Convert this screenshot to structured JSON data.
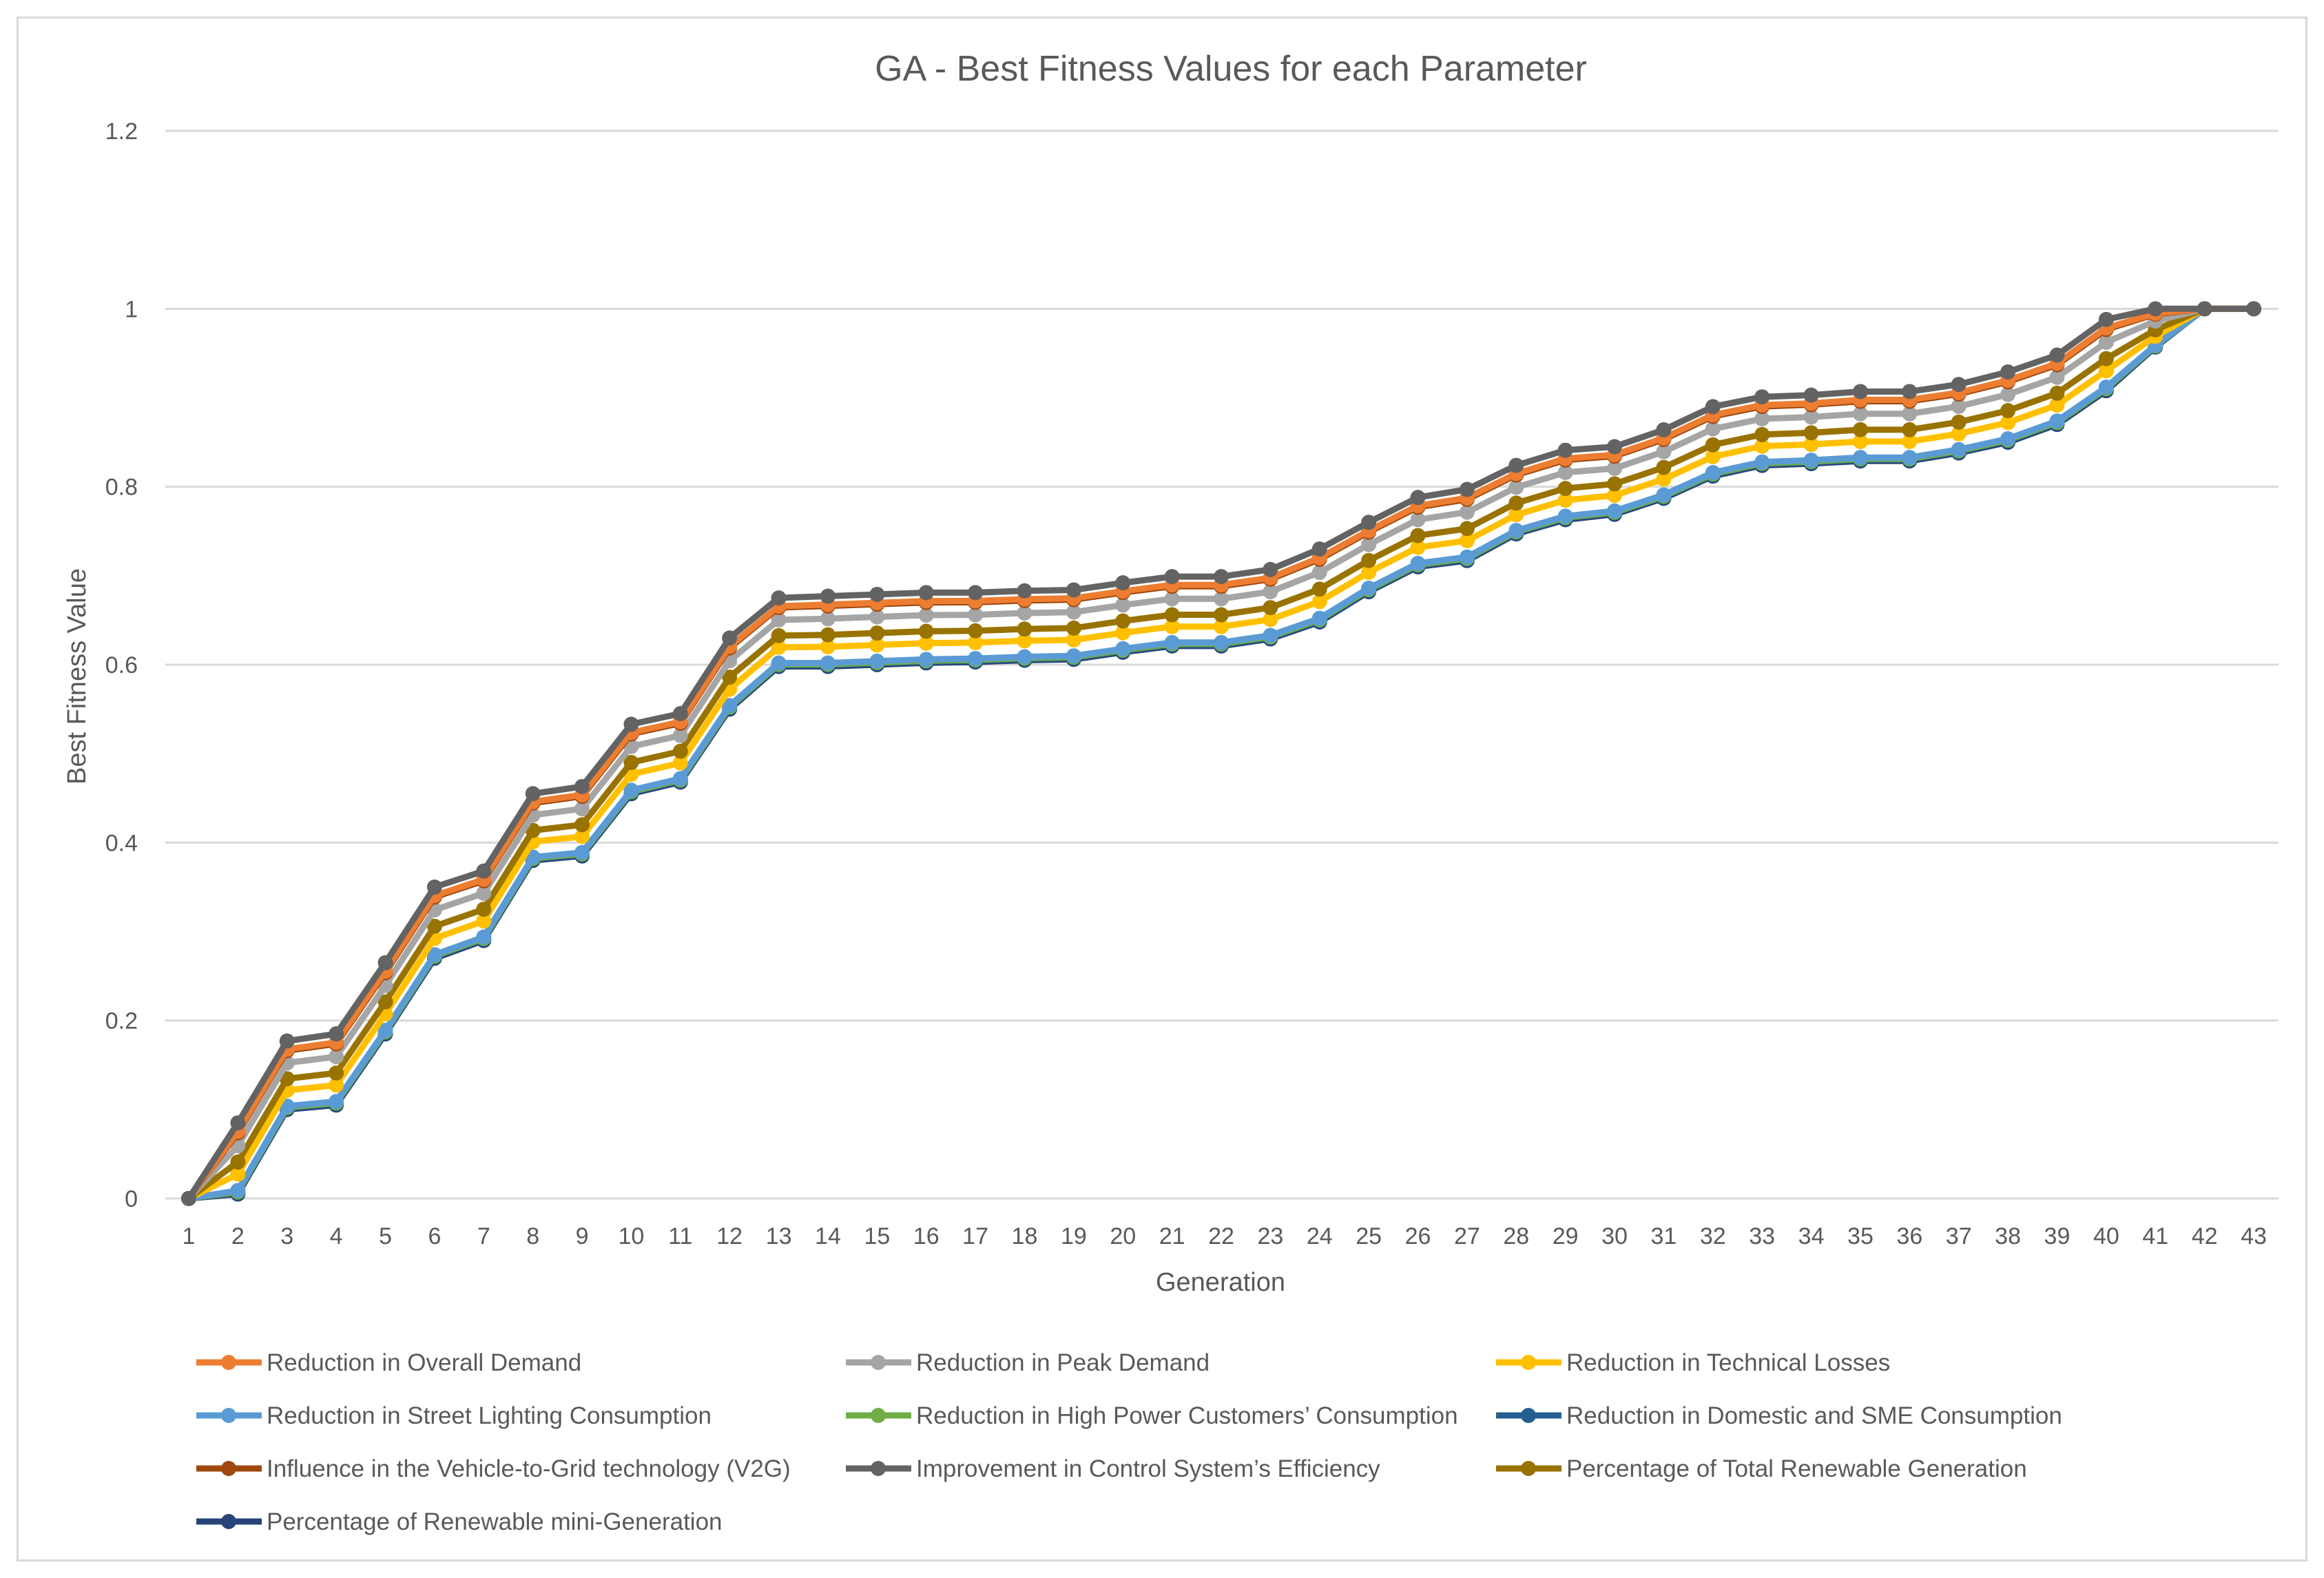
{
  "chart_data": {
    "type": "line",
    "title": "GA - Best Fitness Values for each Parameter",
    "xlabel": "Generation",
    "ylabel": "Best Fitness Value",
    "ylim": [
      0,
      1.2
    ],
    "yticks": [
      0,
      0.2,
      0.4,
      0.6,
      0.8,
      1,
      1.2
    ],
    "ytick_labels": [
      "0",
      "0.2",
      "0.4",
      "0.6",
      "0.8",
      "1",
      "1.2"
    ],
    "grid": "horizontal",
    "legend_position": "bottom",
    "x": [
      1,
      2,
      3,
      4,
      5,
      6,
      7,
      8,
      9,
      10,
      11,
      12,
      13,
      14,
      15,
      16,
      17,
      18,
      19,
      20,
      21,
      22,
      23,
      24,
      25,
      26,
      27,
      28,
      29,
      30,
      31,
      32,
      33,
      34,
      35,
      36,
      37,
      38,
      39,
      40,
      41,
      42,
      43
    ],
    "x_labels": [
      "1",
      "2",
      "3",
      "4",
      "5",
      "6",
      "7",
      "8",
      "9",
      "10",
      "11",
      "12",
      "13",
      "14",
      "15",
      "16",
      "17",
      "18",
      "19",
      "20",
      "21",
      "22",
      "23",
      "24",
      "25",
      "26",
      "27",
      "28",
      "29",
      "30",
      "31",
      "32",
      "33",
      "34",
      "35",
      "36",
      "37",
      "38",
      "39",
      "40",
      "41",
      "42",
      "43"
    ],
    "base_values": [
      0,
      0.005,
      0.1,
      0.105,
      0.185,
      0.27,
      0.29,
      0.38,
      0.385,
      0.455,
      0.468,
      0.55,
      0.598,
      0.598,
      0.6,
      0.602,
      0.603,
      0.605,
      0.606,
      0.614,
      0.621,
      0.621,
      0.629,
      0.648,
      0.682,
      0.71,
      0.717,
      0.747,
      0.763,
      0.769,
      0.787,
      0.812,
      0.824,
      0.826,
      0.829,
      0.829,
      0.838,
      0.85,
      0.87,
      0.908,
      0.957,
      1,
      1
    ],
    "top_values": [
      0,
      0.085,
      0.177,
      0.185,
      0.265,
      0.35,
      0.368,
      0.455,
      0.463,
      0.533,
      0.545,
      0.63,
      0.675,
      0.677,
      0.679,
      0.681,
      0.681,
      0.683,
      0.684,
      0.692,
      0.699,
      0.699,
      0.707,
      0.73,
      0.76,
      0.788,
      0.797,
      0.824,
      0.841,
      0.845,
      0.864,
      0.89,
      0.901,
      0.903,
      0.907,
      0.907,
      0.915,
      0.929,
      0.948,
      0.988,
      1,
      1,
      1
    ],
    "series": [
      {
        "name": "Reduction in Overall Demand",
        "color": "#ED7D31",
        "level": 0.88
      },
      {
        "name": "Reduction in Peak Demand",
        "color": "#A5A5A5",
        "level": 0.68
      },
      {
        "name": "Reduction in Technical Losses",
        "color": "#FFC000",
        "level": 0.28
      },
      {
        "name": "Reduction in Street Lighting Consumption",
        "color": "#5B9BD5",
        "level": 0.05
      },
      {
        "name": "Reduction in High Power Customers’ Consumption",
        "color": "#70AD47",
        "level": 0.03
      },
      {
        "name": "Reduction in Domestic and SME Consumption",
        "color": "#255E91",
        "level": 0.02
      },
      {
        "name": "Influence in the Vehicle-to-Grid technology (V2G)",
        "color": "#9E480E",
        "level": 0.86
      },
      {
        "name": "Improvement in Control System’s Efficiency",
        "color": "#636363",
        "level": 1.0
      },
      {
        "name": "Percentage of Total Renewable Generation",
        "color": "#997300",
        "level": 0.45
      },
      {
        "name": "Percentage of Renewable mini-Generation",
        "color": "#264478",
        "level": 0.0
      }
    ]
  }
}
